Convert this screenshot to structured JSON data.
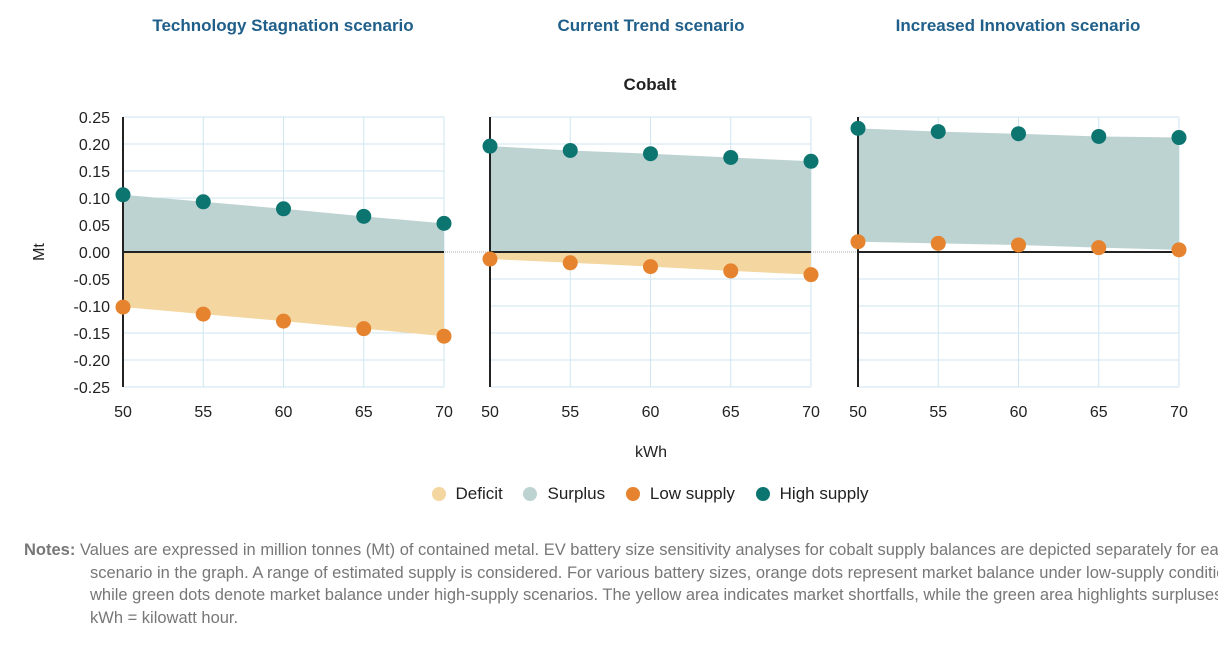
{
  "chart_data": {
    "type": "scatter",
    "title": "Cobalt",
    "xlabel": "kWh",
    "ylabel": "Mt",
    "ylim": [
      -0.25,
      0.25
    ],
    "yticks": [
      "0.25",
      "0.20",
      "0.15",
      "0.10",
      "0.05",
      "0.00",
      "-0.05",
      "-0.10",
      "-0.15",
      "-0.20",
      "-0.25"
    ],
    "x": [
      50,
      55,
      60,
      65,
      70
    ],
    "xticks": [
      "50",
      "55",
      "60",
      "65",
      "70"
    ],
    "grid": true,
    "panels": [
      {
        "name": "Technology Stagnation scenario",
        "series": [
          {
            "name": "High supply",
            "values": [
              0.106,
              0.093,
              0.08,
              0.066,
              0.053
            ]
          },
          {
            "name": "Low supply",
            "values": [
              -0.102,
              -0.115,
              -0.128,
              -0.142,
              -0.156
            ]
          }
        ]
      },
      {
        "name": "Current Trend scenario",
        "series": [
          {
            "name": "High supply",
            "values": [
              0.196,
              0.188,
              0.182,
              0.175,
              0.168
            ]
          },
          {
            "name": "Low supply",
            "values": [
              -0.013,
              -0.02,
              -0.027,
              -0.035,
              -0.042
            ]
          }
        ]
      },
      {
        "name": "Increased Innovation scenario",
        "series": [
          {
            "name": "High supply",
            "values": [
              0.229,
              0.223,
              0.219,
              0.214,
              0.212
            ]
          },
          {
            "name": "Low supply",
            "values": [
              0.019,
              0.016,
              0.013,
              0.008,
              0.004
            ]
          }
        ]
      }
    ],
    "legend": [
      {
        "label": "Deficit",
        "color": "#f4d6a0"
      },
      {
        "label": "Surplus",
        "color": "#bdd3d2"
      },
      {
        "label": "Low supply",
        "color": "#e5832e"
      },
      {
        "label": "High supply",
        "color": "#0d7570"
      }
    ],
    "legend_position": "bottom"
  },
  "notes": {
    "label": "Notes:",
    "text": "Values are expressed in million tonnes (Mt) of contained metal. EV battery size sensitivity analyses for cobalt supply balances are depicted separately for each scenario in the graph. A range of estimated supply is considered. For various battery sizes, orange dots represent market balance under low-supply conditions, while green dots denote market balance under high-supply scenarios. The yellow area indicates market shortfalls, while the green area highlights surpluses. kWh = kilowatt hour."
  }
}
